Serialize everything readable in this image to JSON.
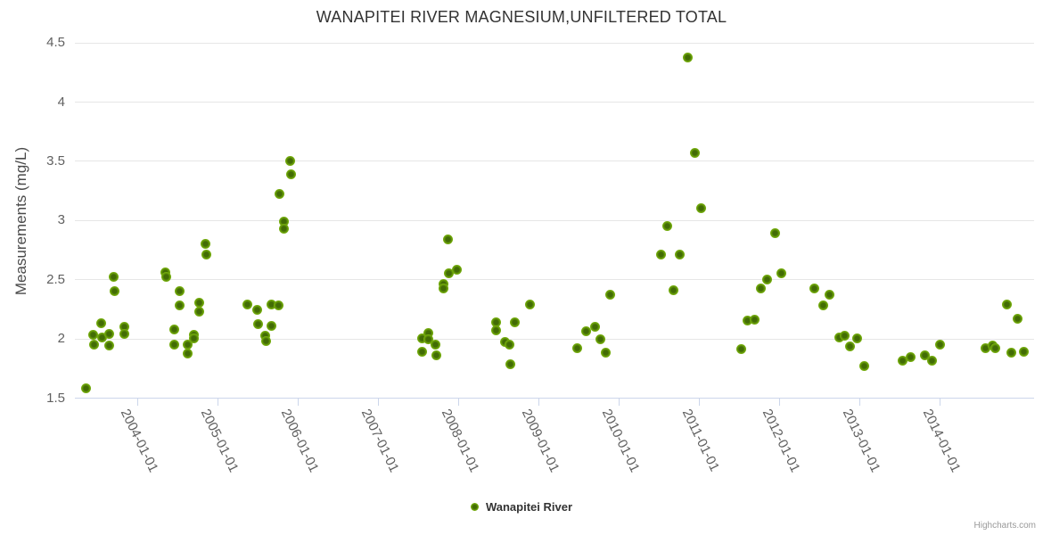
{
  "credits": "Highcharts.com",
  "legend": {
    "label": "Wanapitei River"
  },
  "chart_data": {
    "type": "scatter",
    "title": "WANAPITEI RIVER MAGNESIUM,UNFILTERED TOTAL",
    "xlabel": "",
    "ylabel": "Measurements (mg/L)",
    "ylim": [
      1.5,
      4.5
    ],
    "grid": "horizontal-only",
    "legend_position": "bottom-center",
    "y_axis": {
      "title": "Measurements (mg/L)",
      "ticks": [
        {
          "value": 1.5,
          "label": "1.5"
        },
        {
          "value": 2,
          "label": "2"
        },
        {
          "value": 2.5,
          "label": "2.5"
        },
        {
          "value": 3,
          "label": "3"
        },
        {
          "value": 3.5,
          "label": "3.5"
        },
        {
          "value": 4,
          "label": "4"
        },
        {
          "value": 4.5,
          "label": "4.5"
        }
      ]
    },
    "x_axis": {
      "ticks": [
        "2004-01-01",
        "2005-01-01",
        "2006-01-01",
        "2007-01-01",
        "2008-01-01",
        "2009-01-01",
        "2010-01-01",
        "2011-01-01",
        "2012-01-01",
        "2013-01-01",
        "2014-01-01"
      ]
    },
    "series": [
      {
        "name": "Wanapitei River",
        "color": "#6fa60b",
        "marker_center_color": "#426c05",
        "marker_edge_color": "#8cc61a",
        "data": [
          [
            "2003-05-09",
            1.58
          ],
          [
            "2003-06-11",
            2.03
          ],
          [
            "2003-06-15",
            1.95
          ],
          [
            "2003-07-21",
            2.13
          ],
          [
            "2003-07-24",
            2.01
          ],
          [
            "2003-08-24",
            2.04
          ],
          [
            "2003-08-27",
            1.94
          ],
          [
            "2003-09-15",
            2.52
          ],
          [
            "2003-09-21",
            2.4
          ],
          [
            "2003-11-02",
            2.1
          ],
          [
            "2003-11-04",
            2.04
          ],
          [
            "2004-05-08",
            2.56
          ],
          [
            "2004-05-10",
            2.52
          ],
          [
            "2004-06-15",
            2.08
          ],
          [
            "2004-06-17",
            1.95
          ],
          [
            "2004-07-09",
            2.4
          ],
          [
            "2004-07-11",
            2.28
          ],
          [
            "2004-08-15",
            1.95
          ],
          [
            "2004-08-17",
            1.87
          ],
          [
            "2004-09-13",
            2.03
          ],
          [
            "2004-09-15",
            2.0
          ],
          [
            "2004-10-08",
            2.3
          ],
          [
            "2004-10-10",
            2.23
          ],
          [
            "2004-11-08",
            2.8
          ],
          [
            "2004-11-10",
            2.71
          ],
          [
            "2005-05-16",
            2.29
          ],
          [
            "2005-06-30",
            2.24
          ],
          [
            "2005-07-02",
            2.12
          ],
          [
            "2005-08-06",
            2.02
          ],
          [
            "2005-08-08",
            1.98
          ],
          [
            "2005-09-01",
            2.29
          ],
          [
            "2005-09-03",
            2.11
          ],
          [
            "2005-10-04",
            2.28
          ],
          [
            "2005-10-09",
            3.22
          ],
          [
            "2005-10-29",
            2.99
          ],
          [
            "2005-10-31",
            2.93
          ],
          [
            "2005-11-28",
            3.5
          ],
          [
            "2005-11-30",
            3.39
          ],
          [
            "2007-07-18",
            2.0
          ],
          [
            "2007-07-20",
            1.89
          ],
          [
            "2007-08-17",
            2.05
          ],
          [
            "2007-08-19",
            1.99
          ],
          [
            "2007-09-21",
            1.95
          ],
          [
            "2007-09-23",
            1.86
          ],
          [
            "2007-10-24",
            2.46
          ],
          [
            "2007-10-26",
            2.42
          ],
          [
            "2007-11-16",
            2.84
          ],
          [
            "2007-11-18",
            2.55
          ],
          [
            "2007-12-27",
            2.58
          ],
          [
            "2008-06-21",
            2.14
          ],
          [
            "2008-06-23",
            2.07
          ],
          [
            "2008-07-30",
            1.97
          ],
          [
            "2008-08-22",
            1.95
          ],
          [
            "2008-08-24",
            1.78
          ],
          [
            "2008-09-16",
            2.14
          ],
          [
            "2008-11-22",
            2.29
          ],
          [
            "2009-06-26",
            1.92
          ],
          [
            "2009-08-03",
            2.06
          ],
          [
            "2009-09-13",
            2.1
          ],
          [
            "2009-10-07",
            1.99
          ],
          [
            "2009-11-01",
            1.88
          ],
          [
            "2009-11-25",
            2.37
          ],
          [
            "2010-07-09",
            2.71
          ],
          [
            "2010-08-08",
            2.95
          ],
          [
            "2010-09-05",
            2.41
          ],
          [
            "2010-10-05",
            2.71
          ],
          [
            "2010-11-11",
            4.37
          ],
          [
            "2010-12-11",
            3.57
          ],
          [
            "2011-01-11",
            3.1
          ],
          [
            "2011-07-09",
            1.91
          ],
          [
            "2011-08-07",
            2.15
          ],
          [
            "2011-09-12",
            2.16
          ],
          [
            "2011-10-10",
            2.42
          ],
          [
            "2011-11-08",
            2.5
          ],
          [
            "2011-12-12",
            2.89
          ],
          [
            "2012-01-11",
            2.55
          ],
          [
            "2012-06-08",
            2.42
          ],
          [
            "2012-07-19",
            2.28
          ],
          [
            "2012-08-16",
            2.37
          ],
          [
            "2012-10-01",
            2.01
          ],
          [
            "2012-10-25",
            2.02
          ],
          [
            "2012-11-18",
            1.93
          ],
          [
            "2012-12-22",
            2.0
          ],
          [
            "2013-01-22",
            1.77
          ],
          [
            "2013-07-16",
            1.81
          ],
          [
            "2013-08-22",
            1.84
          ],
          [
            "2013-10-26",
            1.86
          ],
          [
            "2013-11-29",
            1.81
          ],
          [
            "2014-01-01",
            1.95
          ],
          [
            "2014-07-26",
            1.92
          ],
          [
            "2014-08-29",
            1.94
          ],
          [
            "2014-09-12",
            1.92
          ],
          [
            "2014-11-02",
            2.29
          ],
          [
            "2014-11-22",
            1.88
          ],
          [
            "2014-12-22",
            2.17
          ],
          [
            "2015-01-18",
            1.89
          ]
        ]
      }
    ]
  }
}
